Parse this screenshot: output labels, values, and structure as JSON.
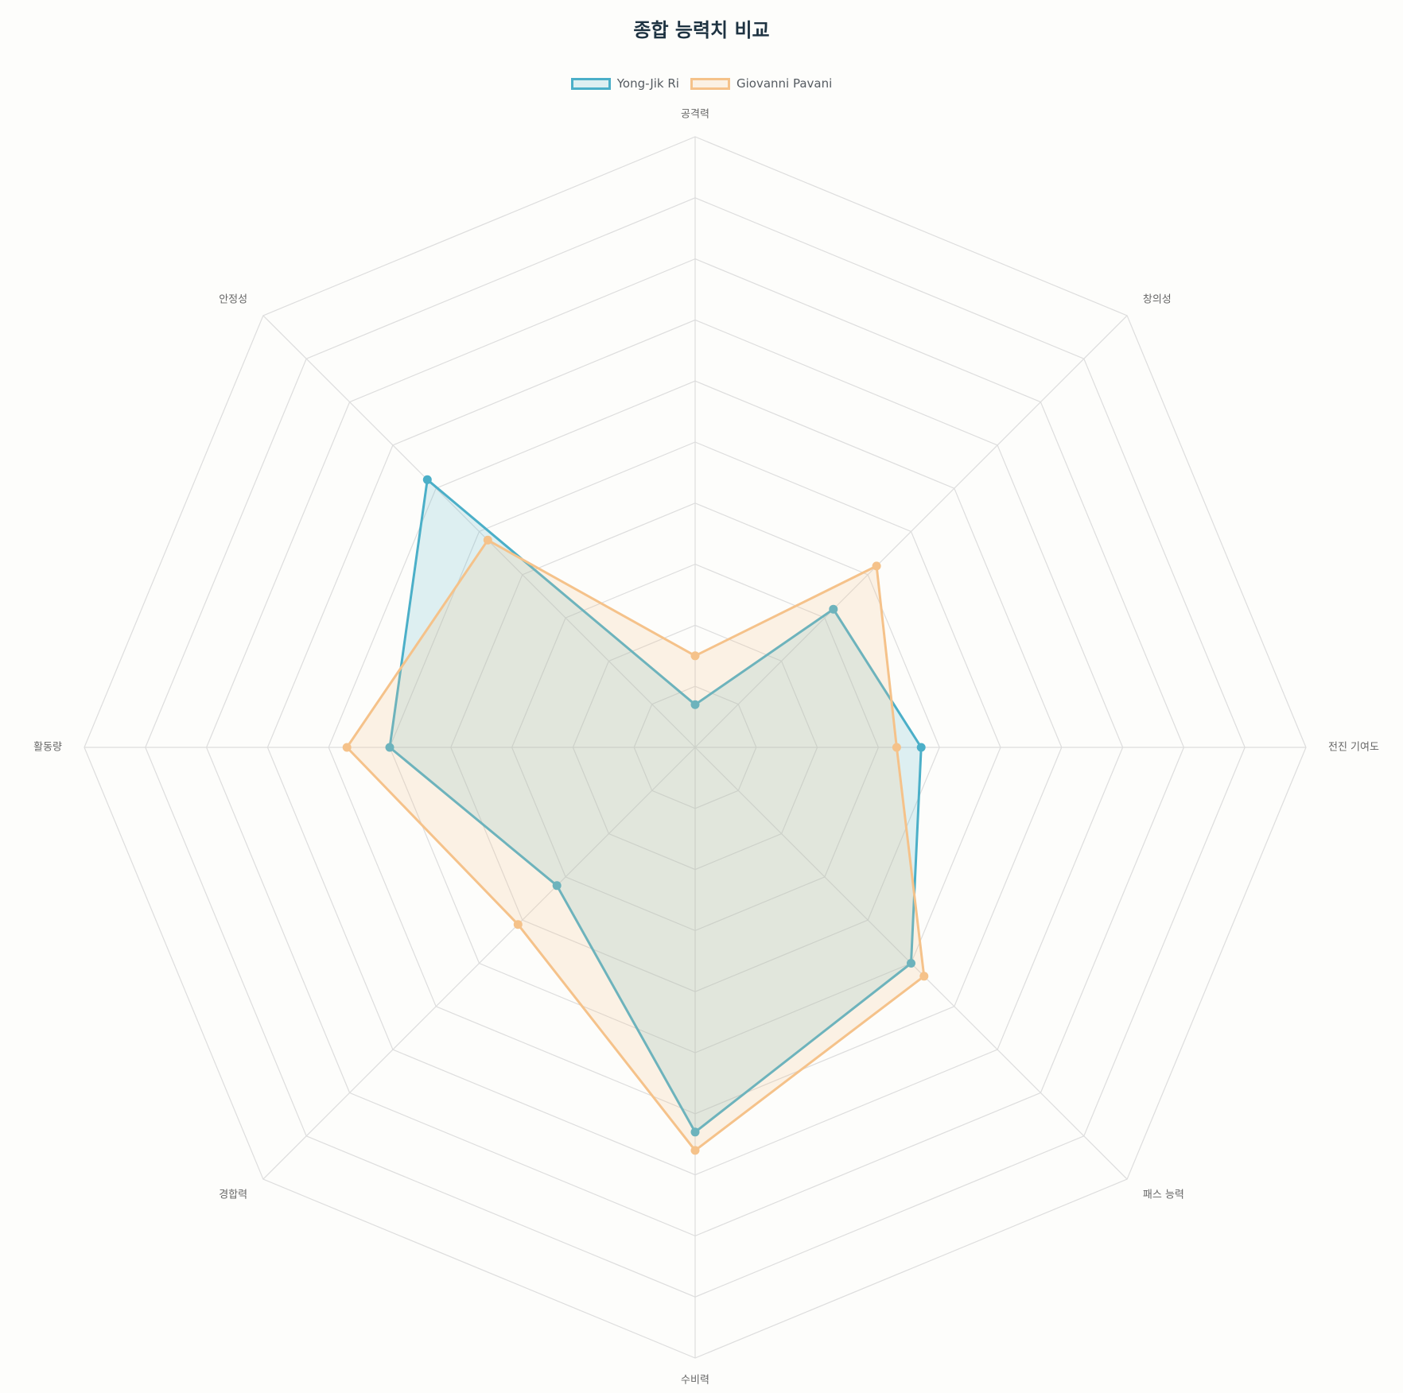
{
  "colors": {
    "background": "#fdfdfb",
    "grid": "#dddddd",
    "title": "#1e3342",
    "axis_label": "#666666"
  },
  "chart_data": {
    "type": "radar",
    "title": "종합 능력치 비교",
    "legend_position": "top",
    "grid": true,
    "range": [
      0,
      10
    ],
    "categories": [
      "공격력",
      "창의성",
      "전진 기여도",
      "패스 능력",
      "수비력",
      "경합력",
      "활동량",
      "안정성"
    ],
    "series": [
      {
        "name": "Yong-Jik Ri",
        "values": [
          0.7,
          3.2,
          3.7,
          5.0,
          6.3,
          3.2,
          5.0,
          6.2
        ],
        "color": "#4bafc8",
        "fill": "rgba(75,175,200,0.18)"
      },
      {
        "name": "Giovanni Pavani",
        "values": [
          1.5,
          4.2,
          3.3,
          5.3,
          6.6,
          4.1,
          5.7,
          4.8
        ],
        "color": "#f5c28a",
        "fill": "rgba(245,194,138,0.20)"
      }
    ]
  }
}
